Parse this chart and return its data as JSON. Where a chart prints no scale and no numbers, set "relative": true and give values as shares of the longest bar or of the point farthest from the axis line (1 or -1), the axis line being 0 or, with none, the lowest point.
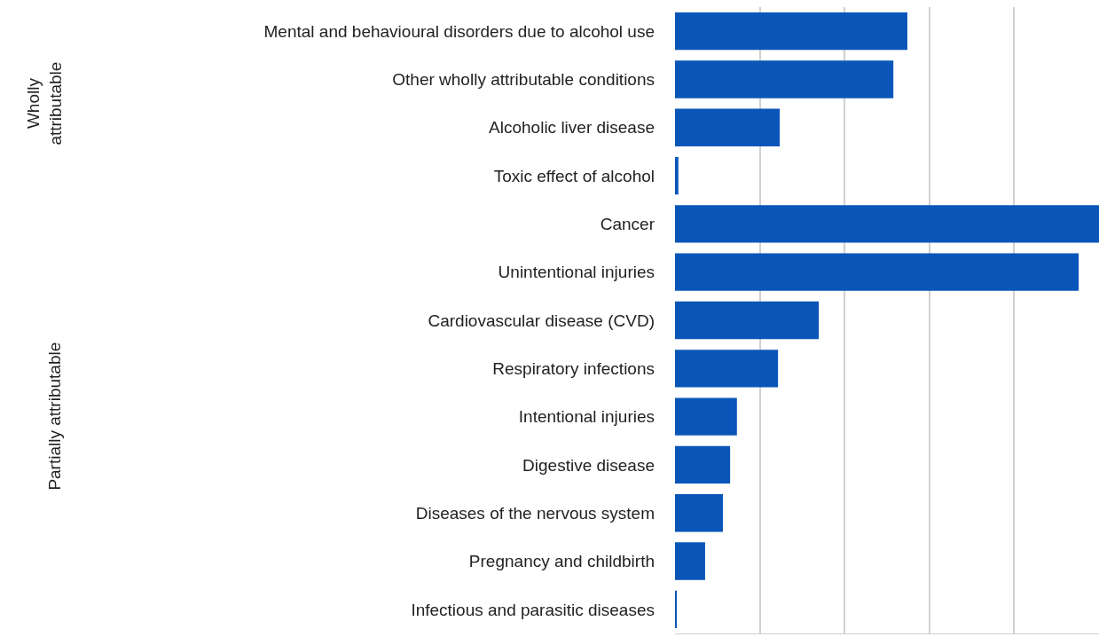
{
  "chart_data": {
    "type": "bar",
    "orientation": "horizontal",
    "relative": true,
    "grid": "x",
    "categories": [
      "Mental and behavioural disorders due to alcohol use",
      "Other wholly attributable conditions",
      "Alcoholic liver disease",
      "Toxic effect of alcohol",
      "Cancer",
      "Unintentional injuries",
      "Cardiovascular disease (CVD)",
      "Respiratory infections",
      "Intentional injuries",
      "Digestive disease",
      "Diseases of the nervous system",
      "Pregnancy and childbirth",
      "Infectious and parasitic diseases"
    ],
    "values": [
      0.548,
      0.515,
      0.247,
      0.008,
      1.0,
      0.952,
      0.339,
      0.243,
      0.146,
      0.13,
      0.113,
      0.071,
      0.004
    ],
    "color": "#0a56b8",
    "annotations": [
      "Wholly\nattributable",
      "Partially attributable"
    ]
  }
}
